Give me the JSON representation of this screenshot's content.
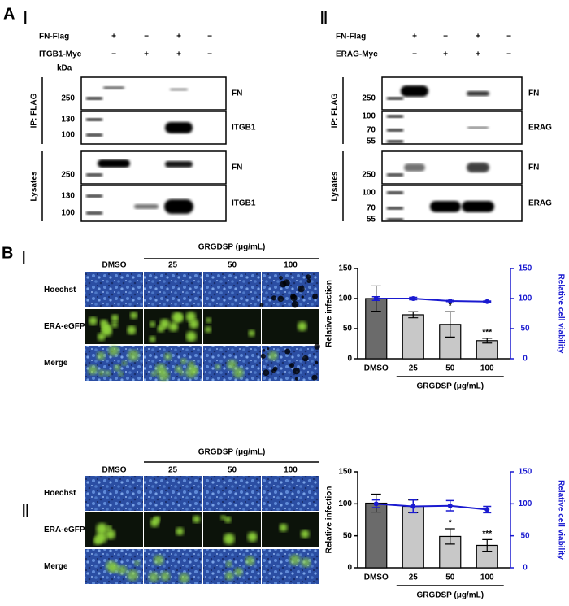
{
  "panel_a": {
    "label": "A",
    "kda": "kDa",
    "subpanels": [
      {
        "roman": "Ⅰ",
        "rows": [
          {
            "label": "FN-Flag",
            "signs": [
              "+",
              "−",
              "+",
              "−"
            ]
          },
          {
            "label": "ITGB1-Myc",
            "signs": [
              "−",
              "+",
              "+",
              "−"
            ]
          }
        ],
        "groups": [
          {
            "label": "IP: FLAG",
            "blots": [
              {
                "target": "FN",
                "markers": [
                  250
                ]
              },
              {
                "target": "ITGB1",
                "markers": [
                  130,
                  100
                ]
              }
            ]
          },
          {
            "label": "Lysates",
            "blots": [
              {
                "target": "FN",
                "markers": [
                  250
                ]
              },
              {
                "target": "ITGB1",
                "markers": [
                  130,
                  100
                ]
              }
            ]
          }
        ]
      },
      {
        "roman": "Ⅱ",
        "rows": [
          {
            "label": "FN-Flag",
            "signs": [
              "+",
              "−",
              "+",
              "−"
            ]
          },
          {
            "label": "ERAG-Myc",
            "signs": [
              "−",
              "+",
              "+",
              "−"
            ]
          }
        ],
        "groups": [
          {
            "label": "IP: FLAG",
            "blots": [
              {
                "target": "FN",
                "markers": [
                  250
                ]
              },
              {
                "target": "ERAG",
                "markers": [
                  100,
                  70,
                  55
                ]
              }
            ]
          },
          {
            "label": "Lysates",
            "blots": [
              {
                "target": "FN",
                "markers": [
                  250
                ]
              },
              {
                "target": "ERAG",
                "markers": [
                  100,
                  70,
                  55
                ]
              }
            ]
          }
        ]
      }
    ]
  },
  "panel_b": {
    "label": "B",
    "subpanels": [
      {
        "roman": "Ⅰ",
        "treatment": "GRGDSP (μg/mL)",
        "columns": [
          "DMSO",
          "25",
          "50",
          "100"
        ],
        "rows": [
          "Hoechst",
          "ERA-eGFP",
          "Merge"
        ]
      },
      {
        "roman": "Ⅱ",
        "treatment": "GRGDSP (μg/mL)",
        "columns": [
          "DMSO",
          "25",
          "50",
          "100"
        ],
        "rows": [
          "Hoechst",
          "ERA-eGFP",
          "Merge"
        ]
      }
    ]
  },
  "chart_data": [
    {
      "type": "bar",
      "ylabel": "Relative infection",
      "y2label": "Relative cell viability",
      "xlabel": "GRGDSP (μg/mL)",
      "categories": [
        "DMSO",
        "25",
        "50",
        "100"
      ],
      "ylim": [
        0,
        150
      ],
      "yticks": [
        0,
        50,
        100,
        150
      ],
      "y2lim": [
        0,
        150
      ],
      "y2ticks": [
        0,
        50,
        100,
        150
      ],
      "y2color": "#1a1ad0",
      "series": [
        {
          "type": "bar",
          "values": [
            100,
            73,
            57,
            30
          ],
          "errors": [
            21,
            5,
            21,
            4
          ],
          "colors": [
            "#6b6b6b",
            "#c8c8c8",
            "#c8c8c8",
            "#c8c8c8"
          ]
        },
        {
          "type": "line",
          "axis": "y2",
          "color": "#1a1ad0",
          "values": [
            100,
            100,
            96,
            95
          ],
          "errors": [
            3,
            2,
            1,
            1
          ]
        }
      ],
      "significance": [
        null,
        null,
        "*",
        "***"
      ]
    },
    {
      "type": "bar",
      "ylabel": "Relative infection",
      "y2label": "Relative cell viability",
      "xlabel": "GRGDSP (μg/mL)",
      "categories": [
        "DMSO",
        "25",
        "50",
        "100"
      ],
      "ylim": [
        0,
        150
      ],
      "yticks": [
        0,
        50,
        100,
        150
      ],
      "y2lim": [
        0,
        150
      ],
      "y2ticks": [
        0,
        50,
        100,
        150
      ],
      "y2color": "#1a1ad0",
      "series": [
        {
          "type": "bar",
          "values": [
            101,
            96,
            49,
            35
          ],
          "errors": [
            14,
            10,
            12,
            9
          ],
          "colors": [
            "#6b6b6b",
            "#c8c8c8",
            "#c8c8c8",
            "#c8c8c8"
          ]
        },
        {
          "type": "line",
          "axis": "y2",
          "color": "#1a1ad0",
          "values": [
            100,
            96,
            97,
            91
          ],
          "errors": [
            6,
            10,
            8,
            5
          ]
        }
      ],
      "significance": [
        null,
        null,
        "*",
        "***"
      ]
    }
  ]
}
